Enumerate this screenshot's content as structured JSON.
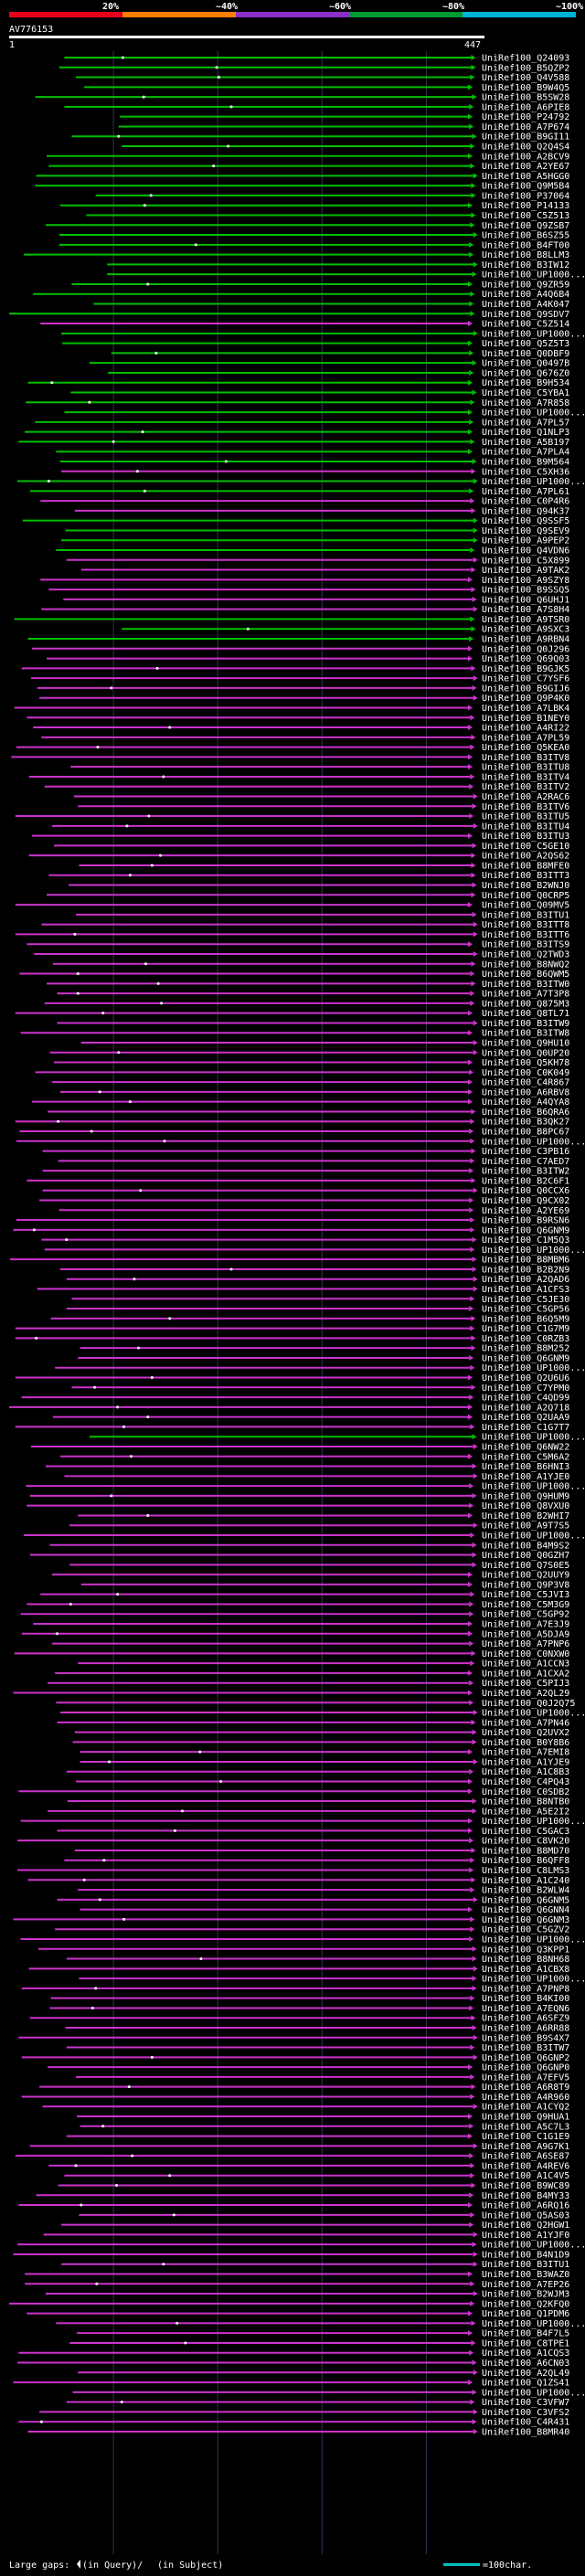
{
  "chart_data": {
    "type": "alignment-overview",
    "title": "AV776153",
    "scale_labels": [
      "20%",
      "~40%",
      "~60%",
      "~80%",
      "~100%"
    ],
    "scale_colors": [
      "#e5001c",
      "#ff7f00",
      "#8b2fc9",
      "#009933",
      "#00b4d8"
    ],
    "coord_start": "1",
    "coord_end": "447",
    "query_length": 447,
    "series_colors": {
      "green": "#00c000",
      "magenta": "#cc33cc"
    },
    "legend": {
      "large_gaps": "Large gaps:",
      "in_query": "(in Query)/",
      "in_subject": "(in Subject)",
      "scale": "=100char."
    },
    "hits": [
      {
        "name": "UniRef100_Q24093",
        "color": "green"
      },
      {
        "name": "UniRef100_B5QZP2",
        "color": "green"
      },
      {
        "name": "UniRef100_Q4V588",
        "color": "green"
      },
      {
        "name": "UniRef100_B9W4Q5",
        "color": "green"
      },
      {
        "name": "UniRef100_B5SW28",
        "color": "green"
      },
      {
        "name": "UniRef100_A6PIE8",
        "color": "green"
      },
      {
        "name": "UniRef100_P24792",
        "color": "green"
      },
      {
        "name": "UniRef100_A7P674",
        "color": "green"
      },
      {
        "name": "UniRef100_B9GI11",
        "color": "green"
      },
      {
        "name": "UniRef100_Q2Q4S4",
        "color": "green"
      },
      {
        "name": "UniRef100_A2BCV9",
        "color": "green"
      },
      {
        "name": "UniRef100_A2YE67",
        "color": "green"
      },
      {
        "name": "UniRef100_A5HGG0",
        "color": "green"
      },
      {
        "name": "UniRef100_Q9M5B4",
        "color": "green"
      },
      {
        "name": "UniRef100_P37064",
        "color": "green"
      },
      {
        "name": "UniRef100_P14133",
        "color": "green"
      },
      {
        "name": "UniRef100_C5Z513",
        "color": "green"
      },
      {
        "name": "UniRef100_Q9ZSB7",
        "color": "green"
      },
      {
        "name": "UniRef100_B6SZ55",
        "color": "green"
      },
      {
        "name": "UniRef100_B4FT00",
        "color": "green"
      },
      {
        "name": "UniRef100_B8LLM3",
        "color": "green"
      },
      {
        "name": "UniRef100_B3IW12",
        "color": "green"
      },
      {
        "name": "UniRef100_UP1000...",
        "color": "green"
      },
      {
        "name": "UniRef100_Q9ZR59",
        "color": "green"
      },
      {
        "name": "UniRef100_A4Q6B4",
        "color": "green"
      },
      {
        "name": "UniRef100_A4K047",
        "color": "green"
      },
      {
        "name": "UniRef100_Q9SDV7",
        "color": "green"
      },
      {
        "name": "UniRef100_C5Z514",
        "color": "magenta"
      },
      {
        "name": "UniRef100_UP1000...",
        "color": "green"
      },
      {
        "name": "UniRef100_Q5Z5T3",
        "color": "green"
      },
      {
        "name": "UniRef100_Q0DBF9",
        "color": "green"
      },
      {
        "name": "UniRef100_Q0497B",
        "color": "green"
      },
      {
        "name": "UniRef100_Q676Z0",
        "color": "green"
      },
      {
        "name": "UniRef100_B9H534",
        "color": "green"
      },
      {
        "name": "UniRef100_C5YBA1",
        "color": "green"
      },
      {
        "name": "UniRef100_A7R858",
        "color": "green"
      },
      {
        "name": "UniRef100_UP1000...",
        "color": "green"
      },
      {
        "name": "UniRef100_A7PL57",
        "color": "green"
      },
      {
        "name": "UniRef100_Q1NLP3",
        "color": "green"
      },
      {
        "name": "UniRef100_A5B197",
        "color": "green"
      },
      {
        "name": "UniRef100_A7PLA4",
        "color": "green"
      },
      {
        "name": "UniRef100_B9M564",
        "color": "green"
      },
      {
        "name": "UniRef100_C5XH36",
        "color": "magenta"
      },
      {
        "name": "UniRef100_UP1000...",
        "color": "green"
      },
      {
        "name": "UniRef100_A7PL61",
        "color": "green"
      },
      {
        "name": "UniRef100_C0P4R6",
        "color": "magenta"
      },
      {
        "name": "UniRef100_Q94K37",
        "color": "magenta"
      },
      {
        "name": "UniRef100_Q9SSF5",
        "color": "green"
      },
      {
        "name": "UniRef100_Q9SEV9",
        "color": "green"
      },
      {
        "name": "UniRef100_A9PEP2",
        "color": "green"
      },
      {
        "name": "UniRef100_Q4VDN6",
        "color": "green"
      },
      {
        "name": "UniRef100_C5X899",
        "color": "magenta"
      },
      {
        "name": "UniRef100_A9TAK2",
        "color": "magenta"
      },
      {
        "name": "UniRef100_A9SZY8",
        "color": "magenta"
      },
      {
        "name": "UniRef100_B9SSQ5",
        "color": "magenta"
      },
      {
        "name": "UniRef100_Q6UHJ1",
        "color": "magenta"
      },
      {
        "name": "UniRef100_A7S8H4",
        "color": "magenta"
      },
      {
        "name": "UniRef100_A9TSR0",
        "color": "green"
      },
      {
        "name": "UniRef100_A9SXC3",
        "color": "green"
      },
      {
        "name": "UniRef100_A9RBN4",
        "color": "green"
      },
      {
        "name": "UniRef100_Q0J296",
        "color": "magenta"
      },
      {
        "name": "UniRef100_Q69Q03",
        "color": "magenta"
      },
      {
        "name": "UniRef100_B9GJK5",
        "color": "magenta"
      },
      {
        "name": "UniRef100_C7YSF6",
        "color": "magenta"
      },
      {
        "name": "UniRef100_B9GIJ6",
        "color": "magenta"
      },
      {
        "name": "UniRef100_Q9P4K0",
        "color": "magenta"
      },
      {
        "name": "UniRef100_A7LBK4",
        "color": "magenta"
      },
      {
        "name": "UniRef100_B1NEY0",
        "color": "magenta"
      },
      {
        "name": "UniRef100_A4RI22",
        "color": "magenta"
      },
      {
        "name": "UniRef100_A7PL59",
        "color": "magenta"
      },
      {
        "name": "UniRef100_Q5KEA0",
        "color": "magenta"
      },
      {
        "name": "UniRef100_B3ITV8",
        "color": "magenta"
      },
      {
        "name": "UniRef100_B3ITU8",
        "color": "magenta"
      },
      {
        "name": "UniRef100_B3ITV4",
        "color": "magenta"
      },
      {
        "name": "UniRef100_B3ITV2",
        "color": "magenta"
      },
      {
        "name": "UniRef100_A2RAC6",
        "color": "magenta"
      },
      {
        "name": "UniRef100_B3ITV6",
        "color": "magenta"
      },
      {
        "name": "UniRef100_B3ITU5",
        "color": "magenta"
      },
      {
        "name": "UniRef100_B3ITU4",
        "color": "magenta"
      },
      {
        "name": "UniRef100_B3ITU3",
        "color": "magenta"
      },
      {
        "name": "UniRef100_C5GE10",
        "color": "magenta"
      },
      {
        "name": "UniRef100_A2QS62",
        "color": "magenta"
      },
      {
        "name": "UniRef100_B8MFE0",
        "color": "magenta"
      },
      {
        "name": "UniRef100_B3ITT3",
        "color": "magenta"
      },
      {
        "name": "UniRef100_B2WNJ0",
        "color": "magenta"
      },
      {
        "name": "UniRef100_Q0CRP5",
        "color": "magenta"
      },
      {
        "name": "UniRef100_Q09MV5",
        "color": "magenta"
      },
      {
        "name": "UniRef100_B3ITU1",
        "color": "magenta"
      },
      {
        "name": "UniRef100_B3ITT8",
        "color": "magenta"
      },
      {
        "name": "UniRef100_B3ITT6",
        "color": "magenta"
      },
      {
        "name": "UniRef100_B3ITS9",
        "color": "magenta"
      },
      {
        "name": "UniRef100_Q2TWD3",
        "color": "magenta"
      },
      {
        "name": "UniRef100_B8NWQ2",
        "color": "magenta"
      },
      {
        "name": "UniRef100_B6QWM5",
        "color": "magenta"
      },
      {
        "name": "UniRef100_B3ITW0",
        "color": "magenta"
      },
      {
        "name": "UniRef100_A7T3P8",
        "color": "magenta"
      },
      {
        "name": "UniRef100_Q875M3",
        "color": "magenta"
      },
      {
        "name": "UniRef100_Q8TL71",
        "color": "magenta"
      },
      {
        "name": "UniRef100_B3ITW9",
        "color": "magenta"
      },
      {
        "name": "UniRef100_B3ITW8",
        "color": "magenta"
      },
      {
        "name": "UniRef100_Q9HU10",
        "color": "magenta"
      },
      {
        "name": "UniRef100_Q0UP20",
        "color": "magenta"
      },
      {
        "name": "UniRef100_Q5KH78",
        "color": "magenta"
      },
      {
        "name": "UniRef100_C0K049",
        "color": "magenta"
      },
      {
        "name": "UniRef100_C4R867",
        "color": "magenta"
      },
      {
        "name": "UniRef100_A6RBV8",
        "color": "magenta"
      },
      {
        "name": "UniRef100_A4QYA8",
        "color": "magenta"
      },
      {
        "name": "UniRef100_B6QRA6",
        "color": "magenta"
      },
      {
        "name": "UniRef100_B3QK27",
        "color": "magenta"
      },
      {
        "name": "UniRef100_B8PC67",
        "color": "magenta"
      },
      {
        "name": "UniRef100_UP1000...",
        "color": "magenta"
      },
      {
        "name": "UniRef100_C3PB16",
        "color": "magenta"
      },
      {
        "name": "UniRef100_C7AED7",
        "color": "magenta"
      },
      {
        "name": "UniRef100_B3ITW2",
        "color": "magenta"
      },
      {
        "name": "UniRef100_B2C6F1",
        "color": "magenta"
      },
      {
        "name": "UniRef100_Q0CCX6",
        "color": "magenta"
      },
      {
        "name": "UniRef100_Q9CX02",
        "color": "magenta"
      },
      {
        "name": "UniRef100_A2YE69",
        "color": "magenta"
      },
      {
        "name": "UniRef100_B9RSN6",
        "color": "magenta"
      },
      {
        "name": "UniRef100_Q6GNM9",
        "color": "magenta"
      },
      {
        "name": "UniRef100_C1M5Q3",
        "color": "magenta"
      },
      {
        "name": "UniRef100_UP1000...",
        "color": "magenta"
      },
      {
        "name": "UniRef100_B8MBM6",
        "color": "magenta"
      },
      {
        "name": "UniRef100_B2B2N9",
        "color": "magenta"
      },
      {
        "name": "UniRef100_A2QAD6",
        "color": "magenta"
      },
      {
        "name": "UniRef100_A1CFS3",
        "color": "magenta"
      },
      {
        "name": "UniRef100_C5JE30",
        "color": "magenta"
      },
      {
        "name": "UniRef100_C5GP56",
        "color": "magenta"
      },
      {
        "name": "UniRef100_B6Q5M9",
        "color": "magenta"
      },
      {
        "name": "UniRef100_C1G7M9",
        "color": "magenta"
      },
      {
        "name": "UniRef100_C0RZB3",
        "color": "magenta"
      },
      {
        "name": "UniRef100_B8M252",
        "color": "magenta"
      },
      {
        "name": "UniRef100_Q6GNM9",
        "color": "magenta"
      },
      {
        "name": "UniRef100_UP1000...",
        "color": "magenta"
      },
      {
        "name": "UniRef100_Q2U6U6",
        "color": "magenta"
      },
      {
        "name": "UniRef100_C7YPM0",
        "color": "magenta"
      },
      {
        "name": "UniRef100_C4QD99",
        "color": "magenta"
      },
      {
        "name": "UniRef100_A2Q718",
        "color": "magenta"
      },
      {
        "name": "UniRef100_Q2UAA9",
        "color": "magenta"
      },
      {
        "name": "UniRef100_C1G7T7",
        "color": "magenta"
      },
      {
        "name": "UniRef100_UP1000...",
        "color": "green"
      },
      {
        "name": "UniRef100_Q6NW22",
        "color": "magenta"
      },
      {
        "name": "UniRef100_C5M6A2",
        "color": "magenta"
      },
      {
        "name": "UniRef100_B6HNI3",
        "color": "magenta"
      },
      {
        "name": "UniRef100_A1YJE0",
        "color": "magenta"
      },
      {
        "name": "UniRef100_UP1000...",
        "color": "magenta"
      },
      {
        "name": "UniRef100_Q9HUM9",
        "color": "magenta"
      },
      {
        "name": "UniRef100_Q8VXU0",
        "color": "magenta"
      },
      {
        "name": "UniRef100_B2WHI7",
        "color": "magenta"
      },
      {
        "name": "UniRef100_A9T7S5",
        "color": "magenta"
      },
      {
        "name": "UniRef100_UP1000...",
        "color": "magenta"
      },
      {
        "name": "UniRef100_B4M9S2",
        "color": "magenta"
      },
      {
        "name": "UniRef100_Q0GZH7",
        "color": "magenta"
      },
      {
        "name": "UniRef100_Q7S0E5",
        "color": "magenta"
      },
      {
        "name": "UniRef100_Q2UUY9",
        "color": "magenta"
      },
      {
        "name": "UniRef100_Q9P3V8",
        "color": "magenta"
      },
      {
        "name": "UniRef100_C5JVI3",
        "color": "magenta"
      },
      {
        "name": "UniRef100_C5M3G9",
        "color": "magenta"
      },
      {
        "name": "UniRef100_C5GP92",
        "color": "magenta"
      },
      {
        "name": "UniRef100_A7E3J9",
        "color": "magenta"
      },
      {
        "name": "UniRef100_A5DJA9",
        "color": "magenta"
      },
      {
        "name": "UniRef100_A7PNP6",
        "color": "magenta"
      },
      {
        "name": "UniRef100_C0NXW0",
        "color": "magenta"
      },
      {
        "name": "UniRef100_A1CCN3",
        "color": "magenta"
      },
      {
        "name": "UniRef100_A1CXA2",
        "color": "magenta"
      },
      {
        "name": "UniRef100_C5PIJ3",
        "color": "magenta"
      },
      {
        "name": "UniRef100_A2QL29",
        "color": "magenta"
      },
      {
        "name": "UniRef100_Q0J2Q75",
        "color": "magenta"
      },
      {
        "name": "UniRef100_UP1000...",
        "color": "magenta"
      },
      {
        "name": "UniRef100_A7PN46",
        "color": "magenta"
      },
      {
        "name": "UniRef100_Q2UVX2",
        "color": "magenta"
      },
      {
        "name": "UniRef100_B0Y8B6",
        "color": "magenta"
      },
      {
        "name": "UniRef100_A7EMI8",
        "color": "magenta"
      },
      {
        "name": "UniRef100_A1YJE9",
        "color": "magenta"
      },
      {
        "name": "UniRef100_A1C8B3",
        "color": "magenta"
      },
      {
        "name": "UniRef100_C4PQ43",
        "color": "magenta"
      },
      {
        "name": "UniRef100_C0SDB2",
        "color": "magenta"
      },
      {
        "name": "UniRef100_B8NTB0",
        "color": "magenta"
      },
      {
        "name": "UniRef100_A5E2I2",
        "color": "magenta"
      },
      {
        "name": "UniRef100_UP1000...",
        "color": "magenta"
      },
      {
        "name": "UniRef100_C5GAC3",
        "color": "magenta"
      },
      {
        "name": "UniRef100_C8VK20",
        "color": "magenta"
      },
      {
        "name": "UniRef100_B8MD70",
        "color": "magenta"
      },
      {
        "name": "UniRef100_B6QFF8",
        "color": "magenta"
      },
      {
        "name": "UniRef100_C8LMS3",
        "color": "magenta"
      },
      {
        "name": "UniRef100_A1C240",
        "color": "magenta"
      },
      {
        "name": "UniRef100_B2WLW4",
        "color": "magenta"
      },
      {
        "name": "UniRef100_Q6GNM5",
        "color": "magenta"
      },
      {
        "name": "UniRef100_Q6GNN4",
        "color": "magenta"
      },
      {
        "name": "UniRef100_Q6GNM3",
        "color": "magenta"
      },
      {
        "name": "UniRef100_C5GZV2",
        "color": "magenta"
      },
      {
        "name": "UniRef100_UP1000...",
        "color": "magenta"
      },
      {
        "name": "UniRef100_Q3KPP1",
        "color": "magenta"
      },
      {
        "name": "UniRef100_B8NH68",
        "color": "magenta"
      },
      {
        "name": "UniRef100_A1CBX8",
        "color": "magenta"
      },
      {
        "name": "UniRef100_UP1000...",
        "color": "magenta"
      },
      {
        "name": "UniRef100_A7PNP8",
        "color": "magenta"
      },
      {
        "name": "UniRef100_B4KI00",
        "color": "magenta"
      },
      {
        "name": "UniRef100_A7EQN6",
        "color": "magenta"
      },
      {
        "name": "UniRef100_A6SFZ9",
        "color": "magenta"
      },
      {
        "name": "UniRef100_A6RR88",
        "color": "magenta"
      },
      {
        "name": "UniRef100_B9S4X7",
        "color": "magenta"
      },
      {
        "name": "UniRef100_B3ITW7",
        "color": "magenta"
      },
      {
        "name": "UniRef100_Q6GNP2",
        "color": "magenta"
      },
      {
        "name": "UniRef100_Q6GNP0",
        "color": "magenta"
      },
      {
        "name": "UniRef100_A7EFV5",
        "color": "magenta"
      },
      {
        "name": "UniRef100_A6R8T9",
        "color": "magenta"
      },
      {
        "name": "UniRef100_A4R960",
        "color": "magenta"
      },
      {
        "name": "UniRef100_A1CYQ2",
        "color": "magenta"
      },
      {
        "name": "UniRef100_Q9HUA1",
        "color": "magenta"
      },
      {
        "name": "UniRef100_A5C7L3",
        "color": "magenta"
      },
      {
        "name": "UniRef100_C1G1E9",
        "color": "magenta"
      },
      {
        "name": "UniRef100_A9G7K1",
        "color": "magenta"
      },
      {
        "name": "UniRef100_A6SE87",
        "color": "magenta"
      },
      {
        "name": "UniRef100_A4REV6",
        "color": "magenta"
      },
      {
        "name": "UniRef100_A1C4V5",
        "color": "magenta"
      },
      {
        "name": "UniRef100_B9WC89",
        "color": "magenta"
      },
      {
        "name": "UniRef100_B4MY33",
        "color": "magenta"
      },
      {
        "name": "UniRef100_A6RQ16",
        "color": "magenta"
      },
      {
        "name": "UniRef100_Q5AS03",
        "color": "magenta"
      },
      {
        "name": "UniRef100_Q2HGW1",
        "color": "magenta"
      },
      {
        "name": "UniRef100_A1YJF0",
        "color": "magenta"
      },
      {
        "name": "UniRef100_UP1000...",
        "color": "magenta"
      },
      {
        "name": "UniRef100_B4N1D9",
        "color": "magenta"
      },
      {
        "name": "UniRef100_B3ITU1",
        "color": "magenta"
      },
      {
        "name": "UniRef100_B3WAZ0",
        "color": "magenta"
      },
      {
        "name": "UniRef100_A7EP26",
        "color": "magenta"
      },
      {
        "name": "UniRef100_B2WJM3",
        "color": "magenta"
      },
      {
        "name": "UniRef100_Q2KFQ0",
        "color": "magenta"
      },
      {
        "name": "UniRef100_Q1PDM6",
        "color": "magenta"
      },
      {
        "name": "UniRef100_UP1000...",
        "color": "magenta"
      },
      {
        "name": "UniRef100_B4F7L5",
        "color": "magenta"
      },
      {
        "name": "UniRef100_C8TPE1",
        "color": "magenta"
      },
      {
        "name": "UniRef100_A1CQS3",
        "color": "magenta"
      },
      {
        "name": "UniRef100_A6CN03",
        "color": "magenta"
      },
      {
        "name": "UniRef100_A2QL49",
        "color": "magenta"
      },
      {
        "name": "UniRef100_Q1ZS41",
        "color": "magenta"
      },
      {
        "name": "UniRef100_UP1000...",
        "color": "magenta"
      },
      {
        "name": "UniRef100_C3VFW7",
        "color": "magenta"
      },
      {
        "name": "UniRef100_C3VFS2",
        "color": "magenta"
      },
      {
        "name": "UniRef100_C4R431",
        "color": "magenta"
      },
      {
        "name": "UniRef100_B8MR40",
        "color": "magenta"
      }
    ]
  }
}
